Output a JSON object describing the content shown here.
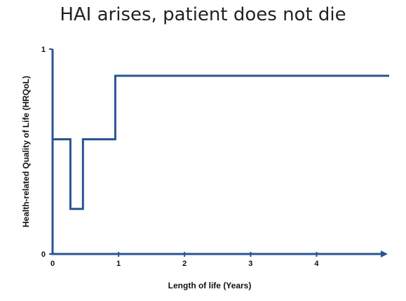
{
  "chart_data": {
    "type": "line",
    "title": "HAI arises, patient does not die",
    "xlabel": "Length of life (Years)",
    "ylabel": "Health-related Quality of Life (HRQoL)",
    "x_ticks": [
      "0",
      "1",
      "2",
      "3",
      "4"
    ],
    "y_ticks": [
      "0",
      "1"
    ],
    "xlim": [
      0,
      5.1
    ],
    "ylim": [
      0,
      1
    ],
    "grid": false,
    "line_color": "#2a5592",
    "axis_color": "#2a5592",
    "series": [
      {
        "step": true,
        "x": [
          0,
          0.27,
          0.27,
          0.46,
          0.46,
          0.95,
          0.95,
          5.1
        ],
        "y": [
          0.56,
          0.56,
          0.22,
          0.22,
          0.56,
          0.56,
          0.87,
          0.87
        ]
      }
    ]
  }
}
